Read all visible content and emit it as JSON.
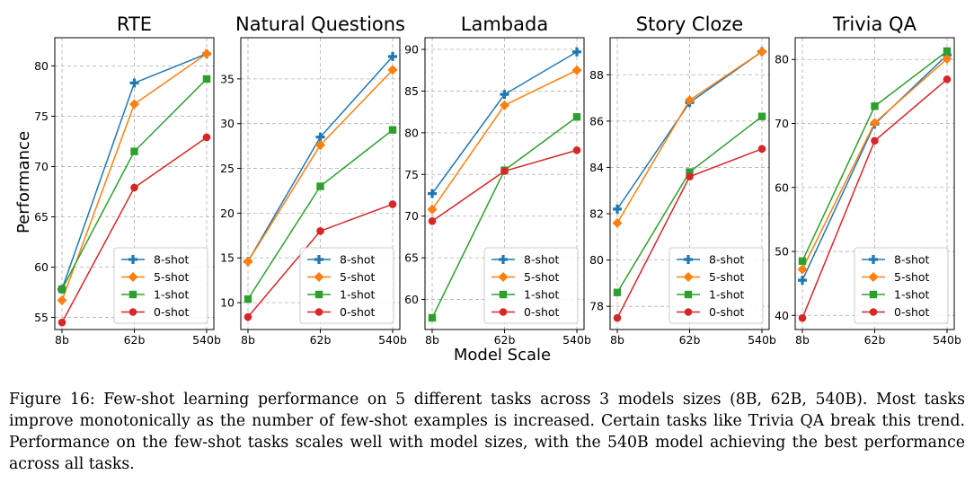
{
  "figure": {
    "ylabel": "Performance",
    "xlabel": "Model Scale",
    "caption": "Figure 16: Few-shot learning performance on 5 different tasks across 3 models sizes (8B, 62B, 540B). Most tasks improve monotonically as the number of few-shot examples is increased. Certain tasks like Trivia QA break this trend. Performance on the few-shot tasks scales well with model sizes, with the 540B model achieving the best performance across all tasks."
  },
  "colors": {
    "8-shot": "#1f77b4",
    "5-shot": "#ff7f0e",
    "1-shot": "#2ca02c",
    "0-shot": "#d62728"
  },
  "chart_data": [
    {
      "type": "line",
      "title": "RTE",
      "categories": [
        "8b",
        "62b",
        "540b"
      ],
      "ylim": [
        53.8,
        82.8
      ],
      "yticks": [
        55,
        60,
        65,
        70,
        75,
        80
      ],
      "grid": true,
      "legend": "lower-right",
      "series": [
        {
          "name": "8-shot",
          "marker": "plus",
          "values": [
            57.8,
            78.3,
            81.2
          ]
        },
        {
          "name": "5-shot",
          "marker": "diamond",
          "values": [
            56.7,
            76.2,
            81.2
          ]
        },
        {
          "name": "1-shot",
          "marker": "square",
          "values": [
            57.8,
            71.5,
            78.7
          ]
        },
        {
          "name": "0-shot",
          "marker": "circle",
          "values": [
            54.5,
            67.9,
            72.9
          ]
        }
      ]
    },
    {
      "type": "line",
      "title": "Natural Questions",
      "categories": [
        "8b",
        "62b",
        "540b"
      ],
      "ylim": [
        7.0,
        39.6
      ],
      "yticks": [
        10,
        15,
        20,
        25,
        30,
        35
      ],
      "grid": true,
      "legend": "lower-right",
      "series": [
        {
          "name": "8-shot",
          "marker": "plus",
          "values": [
            14.6,
            28.5,
            37.5
          ]
        },
        {
          "name": "5-shot",
          "marker": "diamond",
          "values": [
            14.6,
            27.6,
            36.0
          ]
        },
        {
          "name": "1-shot",
          "marker": "square",
          "values": [
            10.4,
            23.0,
            29.3
          ]
        },
        {
          "name": "0-shot",
          "marker": "circle",
          "values": [
            8.4,
            18.0,
            21.0
          ]
        }
      ]
    },
    {
      "type": "line",
      "title": "Lambada",
      "categories": [
        "8b",
        "62b",
        "540b"
      ],
      "ylim": [
        56.4,
        91.4
      ],
      "yticks": [
        60,
        65,
        70,
        75,
        80,
        85,
        90
      ],
      "grid": true,
      "legend": "lower-right",
      "series": [
        {
          "name": "8-shot",
          "marker": "plus",
          "values": [
            72.7,
            84.6,
            89.7
          ]
        },
        {
          "name": "5-shot",
          "marker": "diamond",
          "values": [
            70.8,
            83.3,
            87.5
          ]
        },
        {
          "name": "1-shot",
          "marker": "square",
          "values": [
            57.8,
            75.5,
            81.9
          ]
        },
        {
          "name": "0-shot",
          "marker": "circle",
          "values": [
            69.4,
            75.4,
            77.9
          ]
        }
      ]
    },
    {
      "type": "line",
      "title": "Story Cloze",
      "categories": [
        "8b",
        "62b",
        "540b"
      ],
      "ylim": [
        77.0,
        89.6
      ],
      "yticks": [
        78,
        80,
        82,
        84,
        86,
        88
      ],
      "grid": true,
      "legend": "lower-right",
      "series": [
        {
          "name": "8-shot",
          "marker": "plus",
          "values": [
            82.2,
            86.8,
            89.0
          ]
        },
        {
          "name": "5-shot",
          "marker": "diamond",
          "values": [
            81.6,
            86.9,
            89.0
          ]
        },
        {
          "name": "1-shot",
          "marker": "square",
          "values": [
            78.6,
            83.8,
            86.2
          ]
        },
        {
          "name": "0-shot",
          "marker": "circle",
          "values": [
            77.5,
            83.6,
            84.8
          ]
        }
      ]
    },
    {
      "type": "line",
      "title": "Trivia QA",
      "categories": [
        "8b",
        "62b",
        "540b"
      ],
      "ylim": [
        37.8,
        83.4
      ],
      "yticks": [
        40,
        50,
        60,
        70,
        80
      ],
      "grid": true,
      "legend": "lower-right",
      "series": [
        {
          "name": "8-shot",
          "marker": "plus",
          "values": [
            45.5,
            69.9,
            80.7
          ]
        },
        {
          "name": "5-shot",
          "marker": "diamond",
          "values": [
            47.2,
            70.1,
            80.1
          ]
        },
        {
          "name": "1-shot",
          "marker": "square",
          "values": [
            48.5,
            72.7,
            81.3
          ]
        },
        {
          "name": "0-shot",
          "marker": "circle",
          "values": [
            39.6,
            67.3,
            76.9
          ]
        }
      ]
    }
  ]
}
